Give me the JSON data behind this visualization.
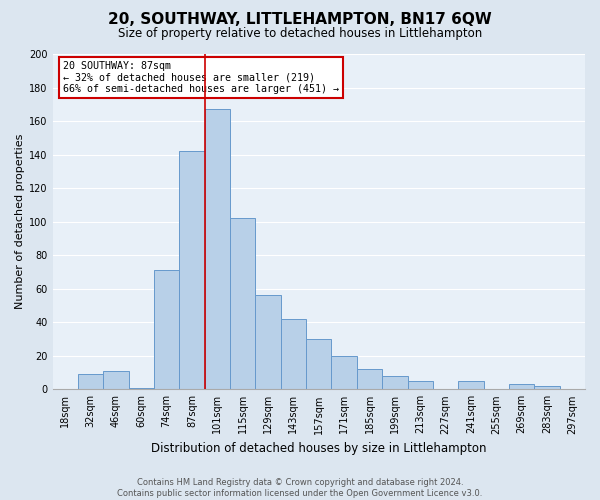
{
  "title": "20, SOUTHWAY, LITTLEHAMPTON, BN17 6QW",
  "subtitle": "Size of property relative to detached houses in Littlehampton",
  "xlabel": "Distribution of detached houses by size in Littlehampton",
  "ylabel": "Number of detached properties",
  "footer_line1": "Contains HM Land Registry data © Crown copyright and database right 2024.",
  "footer_line2": "Contains public sector information licensed under the Open Government Licence v3.0.",
  "bar_labels": [
    "18sqm",
    "32sqm",
    "46sqm",
    "60sqm",
    "74sqm",
    "87sqm",
    "101sqm",
    "115sqm",
    "129sqm",
    "143sqm",
    "157sqm",
    "171sqm",
    "185sqm",
    "199sqm",
    "213sqm",
    "227sqm",
    "241sqm",
    "255sqm",
    "269sqm",
    "283sqm",
    "297sqm"
  ],
  "bar_values": [
    0,
    9,
    11,
    1,
    71,
    142,
    167,
    102,
    56,
    42,
    30,
    20,
    12,
    8,
    5,
    0,
    5,
    0,
    3,
    2,
    0
  ],
  "bar_color": "#b8d0e8",
  "bar_edge_color": "#6699cc",
  "marker_label": "87sqm",
  "marker_color": "#cc0000",
  "annotation_title": "20 SOUTHWAY: 87sqm",
  "annotation_line1": "← 32% of detached houses are smaller (219)",
  "annotation_line2": "66% of semi-detached houses are larger (451) →",
  "annotation_box_color": "#cc0000",
  "ylim": [
    0,
    200
  ],
  "yticks": [
    0,
    20,
    40,
    60,
    80,
    100,
    120,
    140,
    160,
    180,
    200
  ],
  "bg_color": "#dce6f0",
  "plot_bg_color": "#e8f0f8",
  "grid_color": "#ffffff",
  "title_fontsize": 11,
  "subtitle_fontsize": 8.5,
  "ylabel_fontsize": 8,
  "xlabel_fontsize": 8.5,
  "tick_fontsize": 7,
  "footer_fontsize": 6
}
